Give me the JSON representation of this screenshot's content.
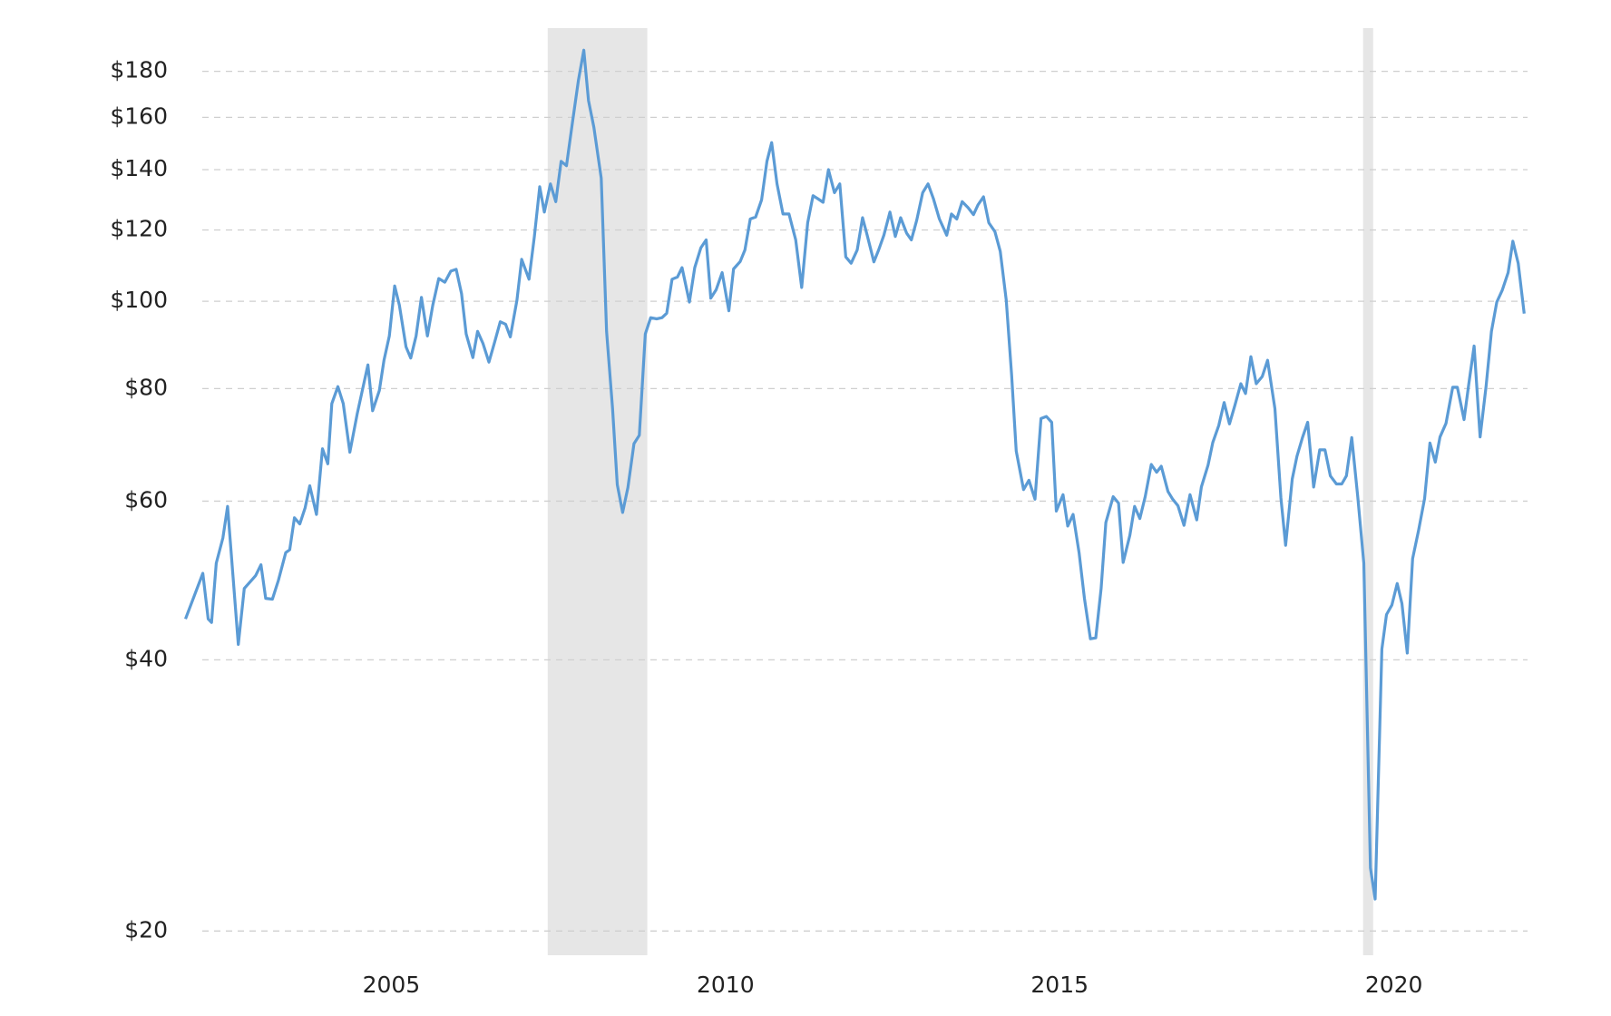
{
  "chart_data": {
    "type": "line",
    "log_scale": true,
    "grid": true,
    "xlim": [
      2001.9,
      2022.0
    ],
    "ylim": [
      18.8,
      201
    ],
    "xticks": [
      2005,
      2010,
      2015,
      2020
    ],
    "yticks": [
      {
        "value": 20,
        "label": "$20"
      },
      {
        "value": 40,
        "label": "$40"
      },
      {
        "value": 60,
        "label": "$60"
      },
      {
        "value": 80,
        "label": "$80"
      },
      {
        "value": 100,
        "label": "$100"
      },
      {
        "value": 120,
        "label": "$120"
      },
      {
        "value": 140,
        "label": "$140"
      },
      {
        "value": 160,
        "label": "$160"
      },
      {
        "value": 180,
        "label": "$180"
      }
    ],
    "shaded_ranges": [
      [
        2007.34,
        2008.83
      ],
      [
        2019.54,
        2019.69
      ]
    ],
    "shade_color": "#e6e6e6",
    "x": [
      2001.92,
      2002.18,
      2002.26,
      2002.31,
      2002.38,
      2002.48,
      2002.55,
      2002.71,
      2002.8,
      2002.97,
      2003.05,
      2003.12,
      2003.22,
      2003.31,
      2003.42,
      2003.48,
      2003.55,
      2003.63,
      2003.71,
      2003.78,
      2003.88,
      2003.97,
      2004.05,
      2004.11,
      2004.2,
      2004.28,
      2004.38,
      2004.49,
      2004.65,
      2004.72,
      2004.82,
      2004.89,
      2004.97,
      2005.05,
      2005.12,
      2005.22,
      2005.29,
      2005.37,
      2005.45,
      2005.54,
      2005.62,
      2005.71,
      2005.8,
      2005.89,
      2005.97,
      2006.05,
      2006.12,
      2006.22,
      2006.29,
      2006.37,
      2006.46,
      2006.55,
      2006.63,
      2006.71,
      2006.78,
      2006.88,
      2006.95,
      2007.06,
      2007.14,
      2007.22,
      2007.29,
      2007.38,
      2007.46,
      2007.54,
      2007.62,
      2007.71,
      2007.8,
      2007.88,
      2007.95,
      2008.03,
      2008.14,
      2008.22,
      2008.31,
      2008.38,
      2008.46,
      2008.54,
      2008.63,
      2008.71,
      2008.8,
      2008.88,
      2008.97,
      2009.05,
      2009.12,
      2009.2,
      2009.28,
      2009.35,
      2009.46,
      2009.54,
      2009.63,
      2009.71,
      2009.78,
      2009.86,
      2009.95,
      2010.05,
      2010.12,
      2010.22,
      2010.29,
      2010.37,
      2010.45,
      2010.54,
      2010.62,
      2010.69,
      2010.77,
      2010.86,
      2010.95,
      2011.05,
      2011.14,
      2011.23,
      2011.31,
      2011.38,
      2011.46,
      2011.54,
      2011.63,
      2011.71,
      2011.8,
      2011.88,
      2011.97,
      2012.05,
      2012.12,
      2012.22,
      2012.29,
      2012.37,
      2012.46,
      2012.54,
      2012.62,
      2012.71,
      2012.78,
      2012.86,
      2012.95,
      2013.03,
      2013.11,
      2013.2,
      2013.31,
      2013.38,
      2013.46,
      2013.54,
      2013.63,
      2013.71,
      2013.78,
      2013.86,
      2013.94,
      2014.03,
      2014.11,
      2014.2,
      2014.28,
      2014.35,
      2014.46,
      2014.54,
      2014.63,
      2014.72,
      2014.8,
      2014.88,
      2014.95,
      2015.05,
      2015.12,
      2015.2,
      2015.29,
      2015.37,
      2015.46,
      2015.54,
      2015.62,
      2015.69,
      2015.8,
      2015.88,
      2015.95,
      2016.05,
      2016.12,
      2016.2,
      2016.28,
      2016.37,
      2016.45,
      2016.52,
      2016.62,
      2016.69,
      2016.77,
      2016.86,
      2016.95,
      2017.05,
      2017.12,
      2017.22,
      2017.29,
      2017.38,
      2017.46,
      2017.54,
      2017.62,
      2017.71,
      2017.78,
      2017.86,
      2017.94,
      2018.03,
      2018.11,
      2018.22,
      2018.31,
      2018.38,
      2018.48,
      2018.55,
      2018.63,
      2018.71,
      2018.8,
      2018.89,
      2018.97,
      2019.05,
      2019.14,
      2019.22,
      2019.29,
      2019.37,
      2019.46,
      2019.55,
      2019.65,
      2019.72,
      2019.82,
      2019.89,
      2019.97,
      2020.05,
      2020.12,
      2020.2,
      2020.28,
      2020.37,
      2020.46,
      2020.54,
      2020.62,
      2020.69,
      2020.78,
      2020.88,
      2020.95,
      2021.05,
      2021.12,
      2021.2,
      2021.29,
      2021.38,
      2021.46,
      2021.54,
      2021.62,
      2021.71,
      2021.78,
      2021.86,
      2021.95
    ],
    "series": [
      {
        "color": "#5b9bd5",
        "values": [
          44.4,
          49.9,
          44.4,
          44,
          51.2,
          54.6,
          59.2,
          41.6,
          48,
          49.6,
          51,
          46.8,
          46.7,
          49,
          52.6,
          53,
          57.5,
          56.6,
          59,
          62.4,
          58,
          68.6,
          66,
          77,
          80.4,
          77,
          68,
          75,
          85,
          75.6,
          79.6,
          86,
          91.5,
          104,
          99,
          89,
          86.5,
          91.5,
          101,
          91.5,
          99,
          106,
          105,
          108,
          108.5,
          102,
          92,
          86.6,
          92.6,
          89.8,
          85.6,
          90.3,
          94.9,
          94.3,
          91.3,
          100.3,
          111.3,
          105.8,
          118,
          134,
          125.6,
          135,
          129,
          143,
          141.4,
          158,
          176,
          190,
          167,
          156,
          137,
          92.6,
          76,
          62.6,
          58.3,
          62.1,
          69.5,
          71,
          92,
          95.9,
          95.6,
          95.9,
          97,
          105.8,
          106.4,
          109,
          99.8,
          109,
          114.6,
          117,
          100.8,
          103,
          107.6,
          97.6,
          108.6,
          110.7,
          114,
          123.4,
          124,
          129.6,
          143,
          150,
          135,
          125,
          125,
          117,
          103.6,
          122.2,
          131,
          130,
          128.8,
          140,
          132,
          135,
          112,
          110.2,
          114,
          123.8,
          118.4,
          110.6,
          114,
          118.4,
          125.6,
          118,
          123.8,
          119,
          117,
          123,
          132,
          135,
          130,
          123.4,
          118.4,
          125,
          123.4,
          129,
          127,
          124.8,
          128,
          130.6,
          122.2,
          119.5,
          113.6,
          100.3,
          82.9,
          68.2,
          61.8,
          63.3,
          60.3,
          74.1,
          74.5,
          73.4,
          58.5,
          61,
          56.3,
          58,
          52.6,
          46.8,
          42.2,
          42.3,
          48,
          56.8,
          60.7,
          59.7,
          51.3,
          55,
          59.2,
          57.4,
          60.7,
          65.9,
          64.6,
          65.6,
          61.5,
          60.3,
          59.3,
          56.4,
          61,
          57.2,
          62.2,
          65.8,
          69.7,
          72.8,
          77.2,
          73.1,
          76.6,
          81,
          79,
          86.8,
          81,
          82.5,
          86,
          76,
          60.5,
          53.6,
          63.5,
          67.3,
          70.5,
          73.4,
          62.2,
          68.4,
          68.4,
          64,
          62.7,
          62.7,
          64,
          70.6,
          60.7,
          51.2,
          23.5,
          21.7,
          41.1,
          44.9,
          46,
          48.6,
          46.2,
          40.7,
          51.8,
          55.7,
          60.4,
          69.6,
          66.3,
          70.7,
          73.2,
          80.3,
          80.3,
          73.9,
          80.9,
          89.2,
          70.7,
          80.5,
          92.6,
          99.8,
          102.8,
          107.6,
          116.6,
          110.2,
          96.9
        ]
      }
    ]
  }
}
